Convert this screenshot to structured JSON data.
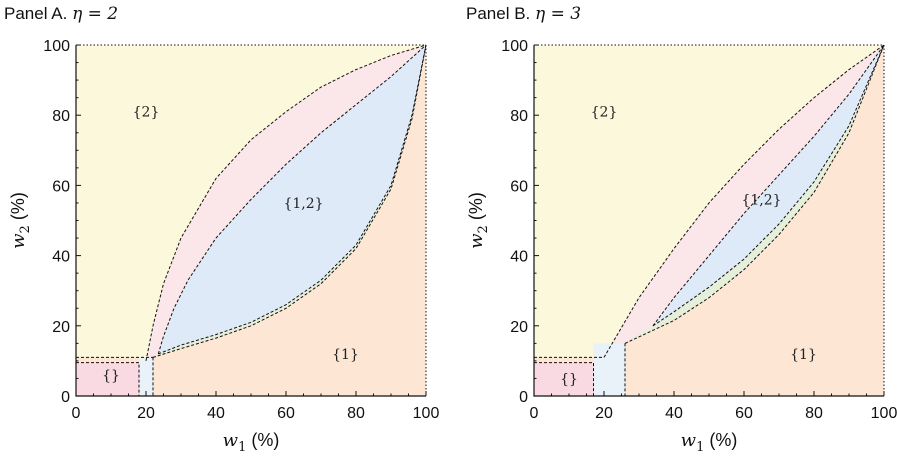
{
  "chart_data": [
    {
      "type": "area",
      "title": "Panel A.",
      "eta_text": "η = 2",
      "xlabel": "w",
      "xlabel_sub": "1",
      "ylabel": "w",
      "ylabel_sub": "2",
      "unit": "(%)",
      "xlim": [
        0,
        100
      ],
      "ylim": [
        0,
        100
      ],
      "ticks": [
        0,
        20,
        40,
        60,
        80,
        100
      ],
      "tick_labels": [
        "0",
        "20",
        "40",
        "60",
        "80",
        "100"
      ],
      "grid": false,
      "colors": {
        "region_2": "#fbf8dc",
        "region_1": "#fde6d3",
        "region_12": "#dfeaf8",
        "region_empty": "#f9d9e2",
        "pink_band": "#fbe6ea",
        "green_band": "#e5efd9",
        "blue_gap": "#e9f2f9"
      },
      "regions": [
        {
          "label": "{2}",
          "at": [
            20,
            81
          ]
        },
        {
          "label": "{1,2}",
          "at": [
            65,
            55
          ]
        },
        {
          "label": "{1}",
          "at": [
            77,
            12
          ]
        },
        {
          "label": "{}",
          "at": [
            10,
            6
          ]
        }
      ],
      "boundaries": {
        "outer_upper": [
          [
            20,
            10
          ],
          [
            22,
            20
          ],
          [
            25,
            32
          ],
          [
            30,
            45
          ],
          [
            40,
            62
          ],
          [
            50,
            73
          ],
          [
            60,
            81
          ],
          [
            70,
            88
          ],
          [
            80,
            93
          ],
          [
            90,
            97
          ],
          [
            100,
            100
          ]
        ],
        "inner_upper": [
          [
            23.5,
            12
          ],
          [
            25,
            17
          ],
          [
            28,
            25
          ],
          [
            32,
            33
          ],
          [
            40,
            45
          ],
          [
            50,
            56
          ],
          [
            60,
            66
          ],
          [
            70,
            75
          ],
          [
            80,
            83
          ],
          [
            90,
            91
          ],
          [
            100,
            100
          ]
        ],
        "inner_lower": [
          [
            23.5,
            12
          ],
          [
            30,
            14.5
          ],
          [
            40,
            17.5
          ],
          [
            50,
            21
          ],
          [
            60,
            26
          ],
          [
            70,
            33
          ],
          [
            80,
            43
          ],
          [
            90,
            60
          ],
          [
            96,
            80
          ],
          [
            100,
            100
          ]
        ],
        "outer_lower": [
          [
            22,
            11
          ],
          [
            30,
            13.5
          ],
          [
            40,
            16.5
          ],
          [
            50,
            20
          ],
          [
            60,
            25
          ],
          [
            70,
            32
          ],
          [
            80,
            42
          ],
          [
            90,
            59
          ],
          [
            96,
            79
          ],
          [
            100,
            100
          ]
        ],
        "empty_box": {
          "x1": 18,
          "y2": 9.5
        },
        "blue_gap": {
          "x1": 18,
          "x2": 22,
          "y2": 11
        },
        "threshold_line": {
          "x2": 22,
          "y": 11
        }
      }
    },
    {
      "type": "area",
      "title": "Panel B.",
      "eta_text": "η = 3",
      "xlabel": "w",
      "xlabel_sub": "1",
      "ylabel": "w",
      "ylabel_sub": "2",
      "unit": "(%)",
      "xlim": [
        0,
        100
      ],
      "ylim": [
        0,
        100
      ],
      "ticks": [
        0,
        20,
        40,
        60,
        80,
        100
      ],
      "tick_labels": [
        "0",
        "20",
        "40",
        "60",
        "80",
        "100"
      ],
      "grid": false,
      "colors": {
        "region_2": "#fbf8dc",
        "region_1": "#fde6d3",
        "region_12": "#dfeaf8",
        "region_empty": "#f9d9e2",
        "pink_band": "#fbe6ea",
        "green_band": "#e5efd9",
        "blue_gap": "#e9f2f9"
      },
      "regions": [
        {
          "label": "{2}",
          "at": [
            20,
            81
          ]
        },
        {
          "label": "{1,2}",
          "at": [
            65,
            56
          ]
        },
        {
          "label": "{1}",
          "at": [
            77,
            12
          ]
        },
        {
          "label": "{}",
          "at": [
            10,
            5
          ]
        }
      ],
      "boundaries": {
        "outer_upper": [
          [
            20,
            11
          ],
          [
            30,
            28
          ],
          [
            40,
            42
          ],
          [
            50,
            55
          ],
          [
            60,
            66
          ],
          [
            70,
            76
          ],
          [
            80,
            85
          ],
          [
            90,
            93
          ],
          [
            100,
            100
          ]
        ],
        "inner_upper": [
          [
            34,
            20
          ],
          [
            40,
            28
          ],
          [
            50,
            40
          ],
          [
            60,
            52
          ],
          [
            70,
            63
          ],
          [
            80,
            74
          ],
          [
            90,
            86
          ],
          [
            100,
            100
          ]
        ],
        "inner_lower": [
          [
            34,
            20
          ],
          [
            40,
            24
          ],
          [
            50,
            31
          ],
          [
            60,
            39
          ],
          [
            70,
            49
          ],
          [
            80,
            61
          ],
          [
            90,
            77
          ],
          [
            100,
            100
          ]
        ],
        "outer_lower": [
          [
            26,
            15
          ],
          [
            40,
            21.5
          ],
          [
            50,
            28
          ],
          [
            60,
            36
          ],
          [
            70,
            46
          ],
          [
            80,
            58
          ],
          [
            90,
            75
          ],
          [
            100,
            100
          ]
        ],
        "empty_box": {
          "x1": 17,
          "y2": 9.5
        },
        "blue_gap": {
          "x1": 17,
          "x2": 26,
          "y2": 15
        },
        "threshold_line": {
          "x2": 20,
          "y": 11
        }
      }
    }
  ]
}
